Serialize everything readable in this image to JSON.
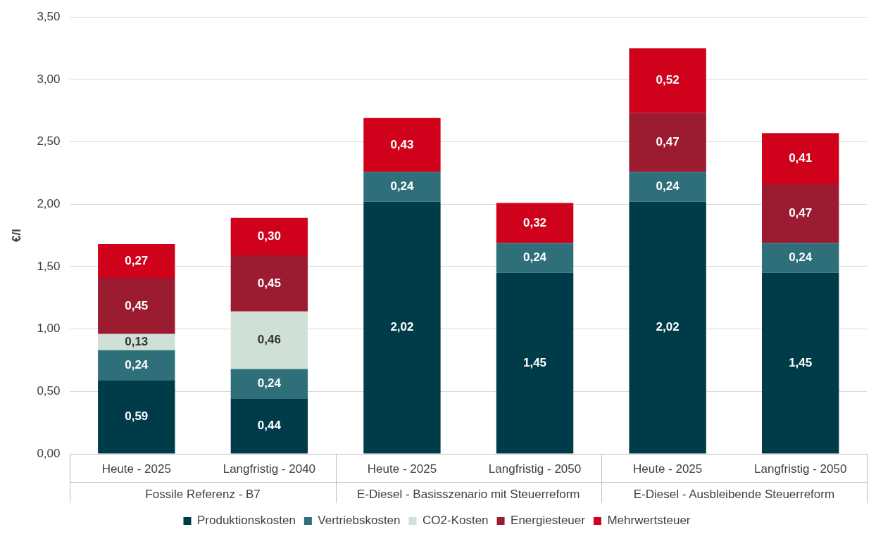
{
  "chart_data": {
    "type": "bar",
    "stacked": true,
    "ylabel": "€/l",
    "categories": [
      "Heute - 2025",
      "Langfristig - 2040",
      "Heute - 2025",
      "Langfristig - 2050",
      "Heute - 2025",
      "Langfristig - 2050"
    ],
    "annotations": [
      "Fossile Referenz - B7",
      "E-Diesel - Basisszenario mit Steuerreform",
      "E-Diesel - Ausbleibende Steuerreform"
    ],
    "series": [
      {
        "name": "Produktionskosten",
        "color": "#003b4a",
        "values": [
          0.59,
          0.44,
          2.02,
          1.45,
          2.02,
          1.45
        ],
        "value_labels": [
          "0,59",
          "0,44",
          "2,02",
          "1,45",
          "2,02",
          "1,45"
        ]
      },
      {
        "name": "Vertriebskosten",
        "color": "#2e6f7a",
        "values": [
          0.24,
          0.24,
          0.24,
          0.24,
          0.24,
          0.24
        ],
        "value_labels": [
          "0,24",
          "0,24",
          "0,24",
          "0,24",
          "0,24",
          "0,24"
        ]
      },
      {
        "name": "CO2-Kosten",
        "color": "#cfe0d6",
        "values": [
          0.13,
          0.46,
          null,
          null,
          null,
          null
        ],
        "value_labels": [
          "0,13",
          "0,46",
          null,
          null,
          null,
          null
        ]
      },
      {
        "name": "Energiesteuer",
        "color": "#9b1b30",
        "values": [
          0.45,
          0.45,
          null,
          null,
          0.47,
          0.47
        ],
        "value_labels": [
          "0,45",
          "0,45",
          null,
          null,
          "0,47",
          "0,47"
        ]
      },
      {
        "name": "Mehrwertsteuer",
        "color": "#d0021b",
        "values": [
          0.27,
          0.3,
          0.43,
          0.32,
          0.52,
          0.41
        ],
        "value_labels": [
          "0,27",
          "0,30",
          "0,43",
          "0,32",
          "0,52",
          "0,41"
        ]
      }
    ],
    "ylim": [
      0,
      3.5
    ],
    "yticks": [
      {
        "value": 0,
        "label": "0,00"
      },
      {
        "value": 0.5,
        "label": "0,50"
      },
      {
        "value": 1,
        "label": "1,00"
      },
      {
        "value": 1.5,
        "label": "1,50"
      },
      {
        "value": 2,
        "label": "2,00"
      },
      {
        "value": 2.5,
        "label": "2,50"
      },
      {
        "value": 3,
        "label": "3,00"
      },
      {
        "value": 3.5,
        "label": "3,50"
      }
    ],
    "grid": "y",
    "legend": "bottom"
  }
}
